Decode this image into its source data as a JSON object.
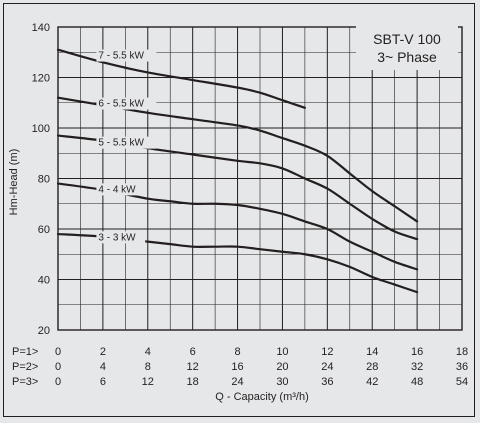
{
  "chart_data": {
    "type": "line",
    "title": [
      "SBT-V 100",
      "3~ Phase"
    ],
    "xlabel": "Q - Capacity (m³/h)",
    "ylabel": "Hm-Head (m)",
    "xlim": [
      0,
      18
    ],
    "ylim": [
      20,
      140
    ],
    "x_ticks": [
      0,
      2,
      4,
      6,
      8,
      10,
      12,
      14,
      16,
      18
    ],
    "y_ticks": [
      20,
      40,
      60,
      80,
      100,
      120,
      140
    ],
    "x_scales": [
      {
        "label": "P=1>",
        "ticks": [
          "0",
          "2",
          "4",
          "6",
          "8",
          "10",
          "12",
          "14",
          "16",
          "18"
        ]
      },
      {
        "label": "P=2>",
        "ticks": [
          "0",
          "4",
          "8",
          "12",
          "16",
          "20",
          "24",
          "28",
          "32",
          "36"
        ]
      },
      {
        "label": "P=3>",
        "ticks": [
          "0",
          "6",
          "12",
          "18",
          "24",
          "30",
          "36",
          "42",
          "48",
          "54"
        ]
      }
    ],
    "grid": true,
    "series": [
      {
        "name": "7 - 5.5 kW",
        "label_at": [
          1.8,
          127.5
        ],
        "points": [
          [
            0,
            131
          ],
          [
            2,
            126
          ],
          [
            4,
            122
          ],
          [
            6,
            119
          ],
          [
            8,
            116
          ],
          [
            9,
            114
          ],
          [
            10,
            111
          ],
          [
            11,
            108
          ]
        ]
      },
      {
        "name": "6 - 5.5 kW",
        "label_at": [
          1.8,
          108.5
        ],
        "points": [
          [
            0,
            112
          ],
          [
            2,
            109
          ],
          [
            4,
            106
          ],
          [
            6,
            103.5
          ],
          [
            8,
            101
          ],
          [
            9,
            99
          ],
          [
            10,
            96
          ],
          [
            11,
            93
          ],
          [
            12,
            89
          ],
          [
            13,
            82
          ],
          [
            14,
            75
          ],
          [
            15,
            69
          ],
          [
            16,
            63
          ]
        ]
      },
      {
        "name": "5 - 5.5 kW",
        "label_at": [
          1.8,
          93
        ],
        "points": [
          [
            0,
            97
          ],
          [
            2,
            95
          ],
          [
            4,
            92
          ],
          [
            6,
            89.5
          ],
          [
            8,
            87
          ],
          [
            9,
            86
          ],
          [
            10,
            84
          ],
          [
            11,
            80
          ],
          [
            12,
            76
          ],
          [
            13,
            70
          ],
          [
            14,
            64
          ],
          [
            15,
            59
          ],
          [
            16,
            56
          ]
        ]
      },
      {
        "name": "4 - 4 kW",
        "label_at": [
          1.8,
          74.5
        ],
        "points": [
          [
            0,
            78
          ],
          [
            2,
            75.5
          ],
          [
            4,
            72
          ],
          [
            5,
            71
          ],
          [
            6,
            70
          ],
          [
            7,
            70
          ],
          [
            8,
            69.5
          ],
          [
            9,
            68
          ],
          [
            10,
            66
          ],
          [
            11,
            63
          ],
          [
            12,
            60
          ],
          [
            13,
            55
          ],
          [
            14,
            51
          ],
          [
            15,
            47
          ],
          [
            16,
            44
          ]
        ]
      },
      {
        "name": "3 - 3 kW",
        "label_at": [
          1.8,
          55.5
        ],
        "points": [
          [
            0,
            58
          ],
          [
            2,
            57
          ],
          [
            4,
            55
          ],
          [
            5,
            54
          ],
          [
            6,
            53
          ],
          [
            7,
            53
          ],
          [
            8,
            53
          ],
          [
            9,
            52
          ],
          [
            10,
            51
          ],
          [
            11,
            50
          ],
          [
            12,
            48
          ],
          [
            13,
            45
          ],
          [
            14,
            41
          ],
          [
            15,
            38
          ],
          [
            16,
            35
          ]
        ]
      }
    ]
  }
}
